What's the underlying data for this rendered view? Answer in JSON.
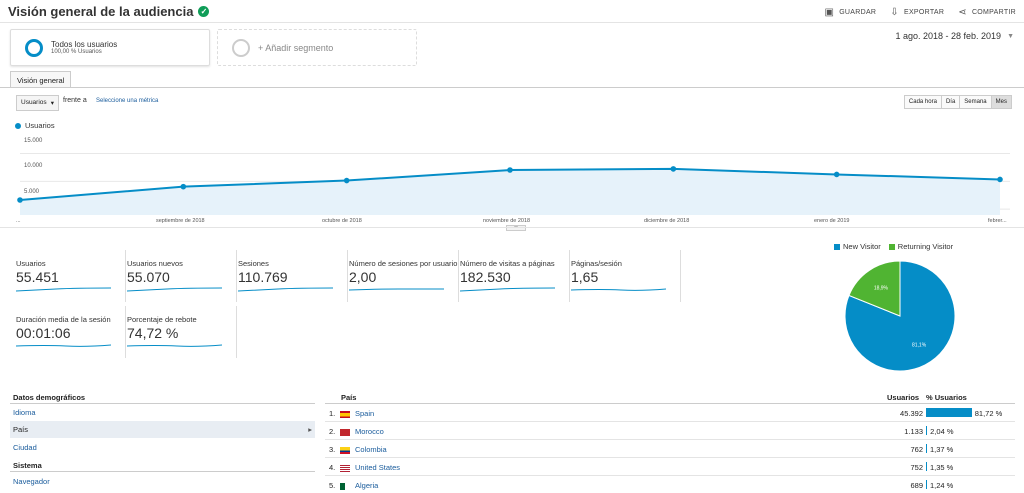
{
  "header": {
    "title": "Visión general de la audiencia",
    "actions": [
      {
        "icon": "save-icon",
        "label": "GUARDAR"
      },
      {
        "icon": "export-icon",
        "label": "EXPORTAR"
      },
      {
        "icon": "share-icon",
        "label": "COMPARTIR"
      }
    ]
  },
  "segments": {
    "active_title": "Todos los usuarios",
    "active_sub": "100,00 % Usuarios",
    "add": "+ Añadir segmento"
  },
  "date_range": "1 ago. 2018 - 28 feb. 2019",
  "tab": "Visión general",
  "controls": {
    "metric": "Usuarios",
    "versus": "frente a",
    "select_metric": "Seleccione una métrica",
    "granularity": [
      "Cada hora",
      "Día",
      "Semana",
      "Mes"
    ],
    "active_granularity": "Mes"
  },
  "chart_data": {
    "type": "line",
    "series": [
      {
        "name": "Usuarios",
        "values": [
          5200,
          7600,
          8700,
          10600,
          10800,
          9800,
          8900
        ]
      }
    ],
    "x": [
      "ago. 2018",
      "sep. 2018",
      "oct. 2018",
      "nov. 2018",
      "dic. 2018",
      "ene. 2019",
      "feb. 2019"
    ],
    "x_tick_labels": [
      "...",
      "septiembre de 2018",
      "octubre de 2018",
      "noviembre de 2018",
      "diciembre de 2018",
      "enero de 2019",
      "febrer..."
    ],
    "y_tick_labels": [
      "15.000",
      "10.000",
      "5.000"
    ],
    "ylim": [
      2500,
      16000
    ]
  },
  "metrics": [
    {
      "label": "Usuarios",
      "value": "55.451"
    },
    {
      "label": "Usuarios nuevos",
      "value": "55.070"
    },
    {
      "label": "Sesiones",
      "value": "110.769"
    },
    {
      "label": "Número de sesiones por usuario",
      "value": "2,00"
    },
    {
      "label": "Número de visitas a páginas",
      "value": "182.530"
    },
    {
      "label": "Páginas/sesión",
      "value": "1,65"
    },
    {
      "label": "Duración media de la sesión",
      "value": "00:01:06"
    },
    {
      "label": "Porcentaje de rebote",
      "value": "74,72 %"
    }
  ],
  "pie": {
    "legend": [
      {
        "name": "New Visitor",
        "color": "#058dc7"
      },
      {
        "name": "Returning Visitor",
        "color": "#50b432"
      }
    ],
    "values": [
      81.1,
      18.9
    ],
    "labels": [
      "81,1%",
      "18,9%"
    ]
  },
  "demographics": {
    "heading": "Datos demográficos",
    "items": [
      "Idioma",
      "País",
      "Ciudad"
    ],
    "system_heading": "Sistema",
    "system_items": [
      "Navegador"
    ]
  },
  "country_table": {
    "col_country": "País",
    "col_users": "Usuarios",
    "col_pct": "% Usuarios",
    "rows": [
      {
        "rank": "1.",
        "country": "Spain",
        "users": "45.392",
        "pct": "81,72 %",
        "share": 81.72
      },
      {
        "rank": "2.",
        "country": "Morocco",
        "users": "1.133",
        "pct": "2,04 %",
        "share": 2.04
      },
      {
        "rank": "3.",
        "country": "Colombia",
        "users": "762",
        "pct": "1,37 %",
        "share": 1.37
      },
      {
        "rank": "4.",
        "country": "United States",
        "users": "752",
        "pct": "1,35 %",
        "share": 1.35
      },
      {
        "rank": "5.",
        "country": "Algeria",
        "users": "689",
        "pct": "1,24 %",
        "share": 1.24
      }
    ]
  }
}
